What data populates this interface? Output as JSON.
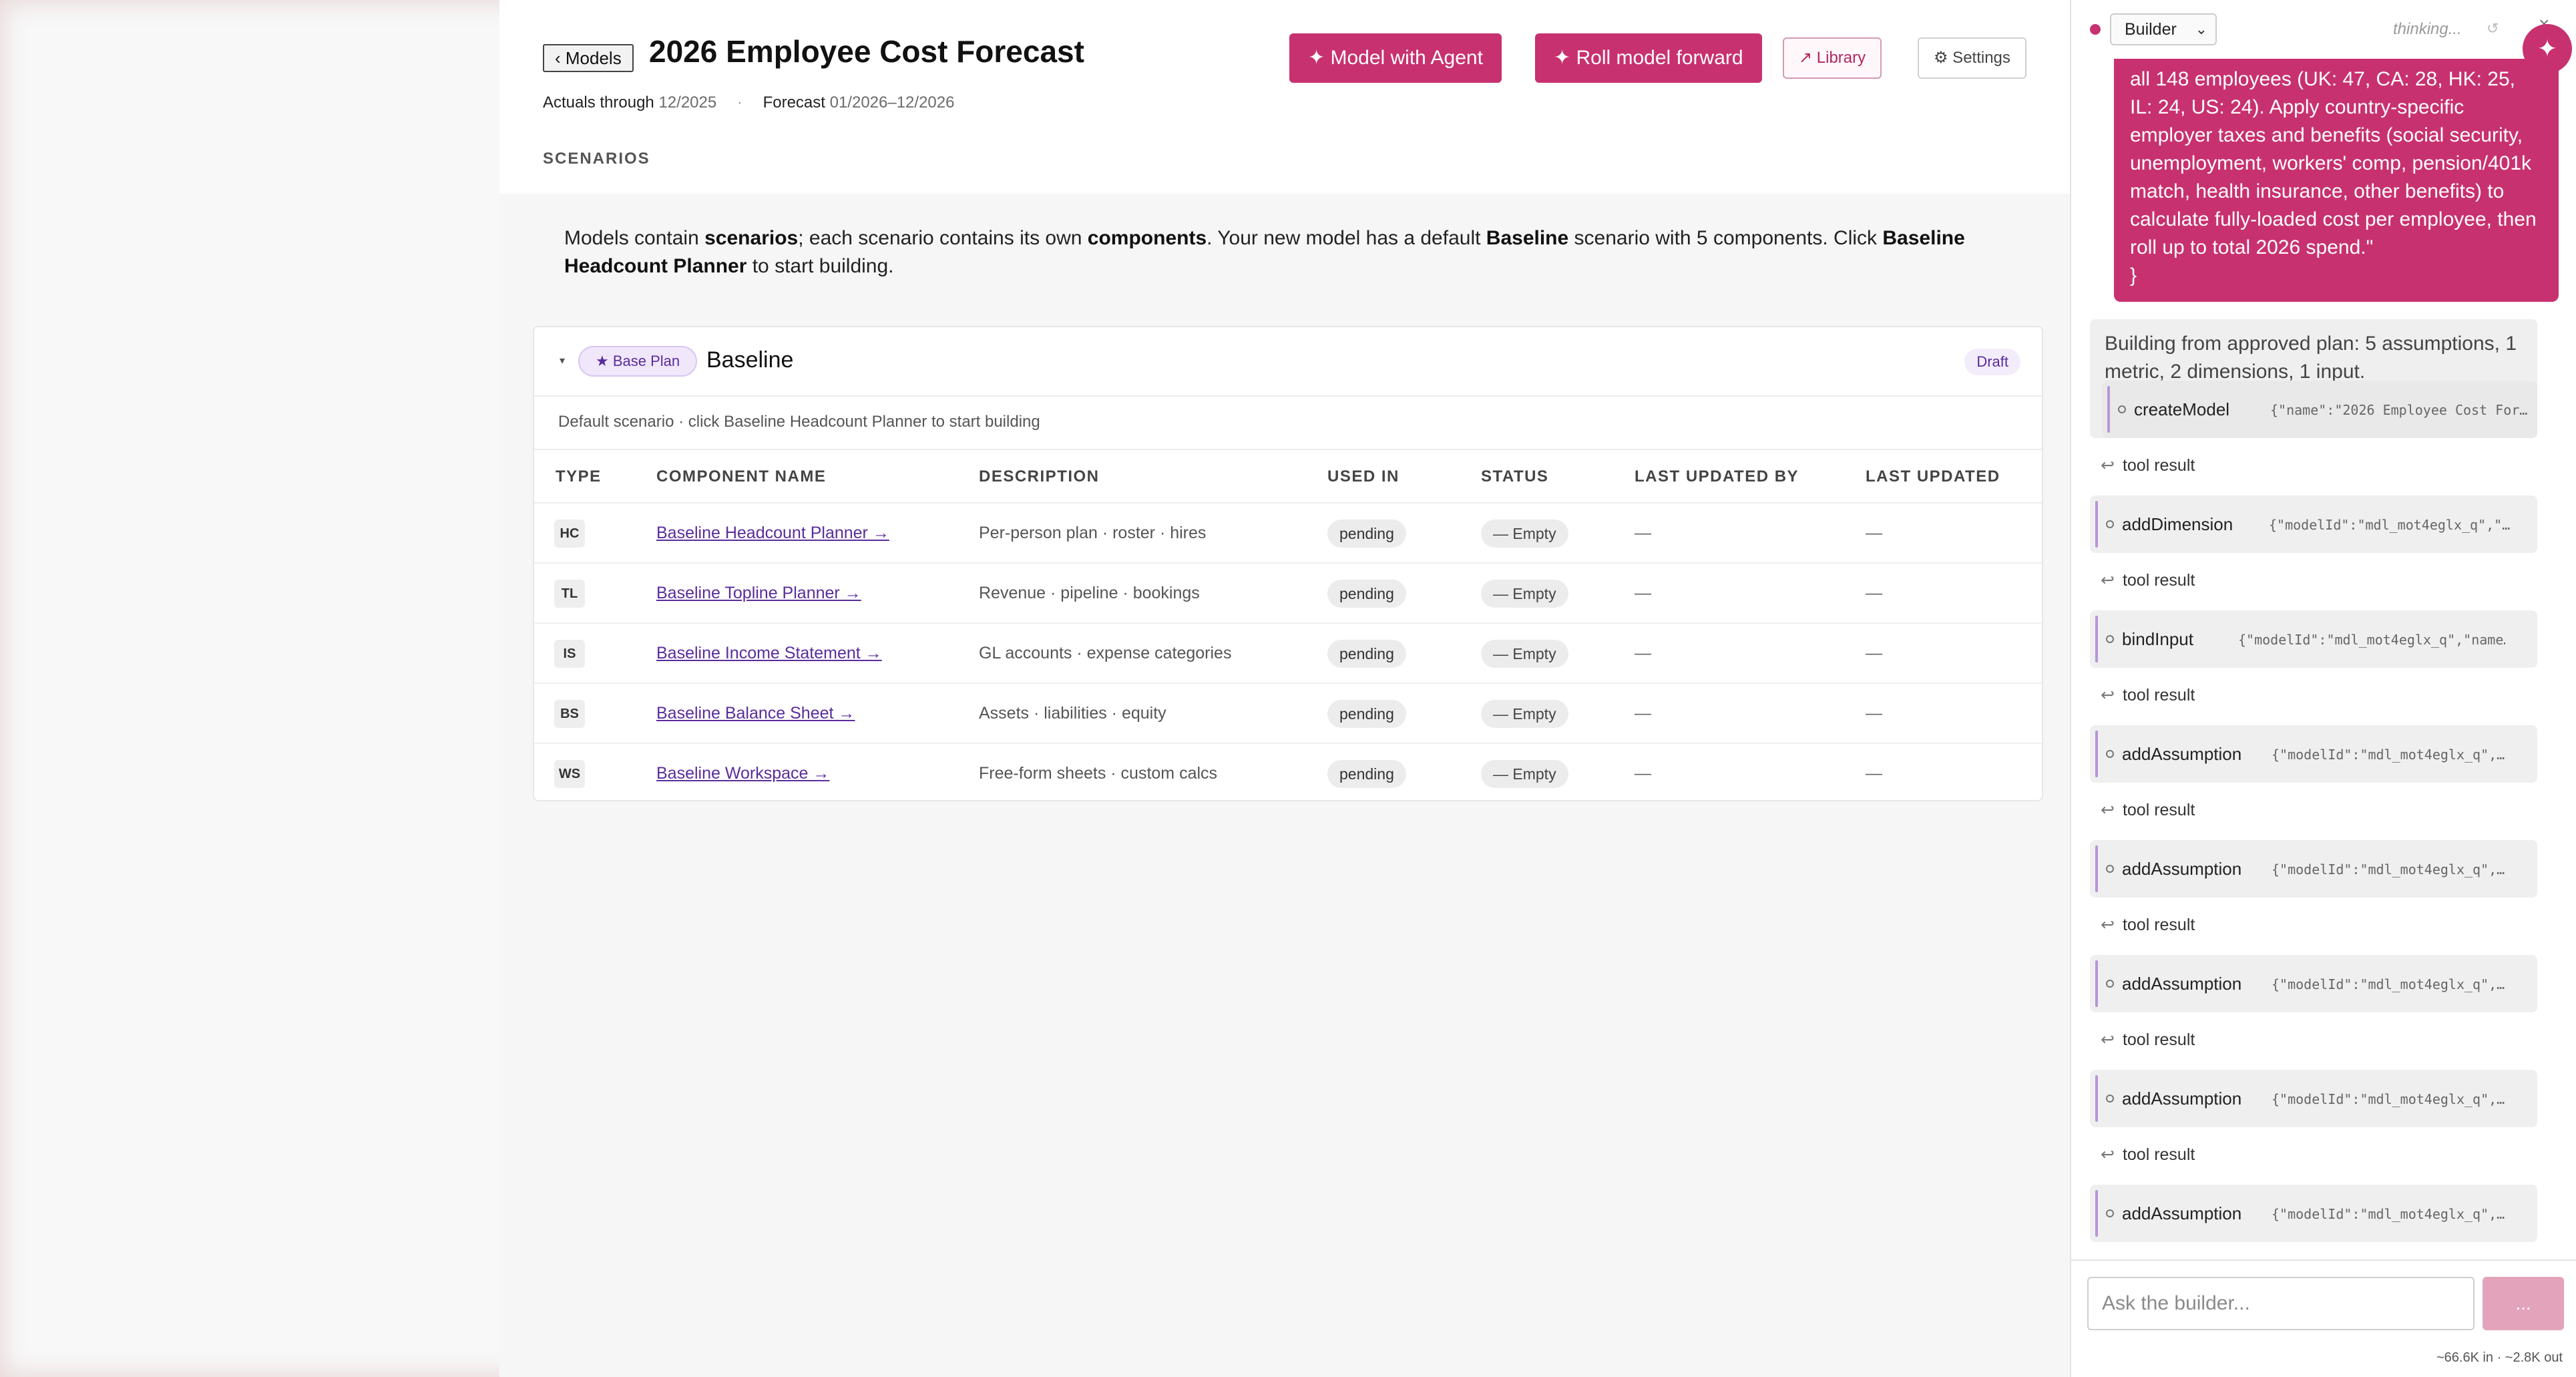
{
  "header": {
    "back_label": "‹ Models",
    "title": "2026 Employee Cost Forecast",
    "actuals_label": "Actuals through",
    "actuals_value": "12/2025",
    "meta_sep": "·",
    "forecast_label": "Forecast",
    "forecast_value": "01/2026–12/2026",
    "scenarios_label": "SCENARIOS",
    "buttons": {
      "agent": "✦ Model with Agent",
      "roll": "✦ Roll model forward",
      "library": "↗ Library",
      "settings": "⚙ Settings"
    }
  },
  "intro": {
    "p1": "Models contain ",
    "b1": "scenarios",
    "p2": "; each scenario contains its own ",
    "b2": "components",
    "p3": ". Your new model has a default ",
    "b3": "Baseline",
    "p4": " scenario with 5 components. Click ",
    "b4": "Baseline Headcount Planner",
    "p5": " to start building."
  },
  "scenario": {
    "caret": "▾",
    "badge": "★ Base Plan",
    "title": "Baseline",
    "status": "Draft",
    "subtitle": "Default scenario · click Baseline Headcount Planner to start building",
    "columns": [
      "TYPE",
      "COMPONENT NAME",
      "DESCRIPTION",
      "USED IN",
      "STATUS",
      "LAST UPDATED BY",
      "LAST UPDATED"
    ],
    "rows": [
      {
        "type": "HC",
        "name": "Baseline Headcount Planner →",
        "description": "Per-person plan · roster · hires",
        "used_in": "pending",
        "status": "— Empty",
        "updated_by": "—",
        "updated": "—"
      },
      {
        "type": "TL",
        "name": "Baseline Topline Planner →",
        "description": "Revenue · pipeline · bookings",
        "used_in": "pending",
        "status": "— Empty",
        "updated_by": "—",
        "updated": "—"
      },
      {
        "type": "IS",
        "name": "Baseline Income Statement →",
        "description": "GL accounts · expense categories",
        "used_in": "pending",
        "status": "— Empty",
        "updated_by": "—",
        "updated": "—"
      },
      {
        "type": "BS",
        "name": "Baseline Balance Sheet →",
        "description": "Assets · liabilities · equity",
        "used_in": "pending",
        "status": "— Empty",
        "updated_by": "—",
        "updated": "—"
      },
      {
        "type": "WS",
        "name": "Baseline Workspace →",
        "description": "Free-form sheets · custom calcs",
        "used_in": "pending",
        "status": "— Empty",
        "updated_by": "—",
        "updated": "—"
      }
    ]
  },
  "sidebar": {
    "mode": "Builder",
    "mode_chevron": "⌄",
    "thinking": "thinking...",
    "refresh_icon": "↺",
    "close_icon": "×",
    "spark_icon": "✦",
    "user_message": "all 148 employees (UK: 47, CA: 28, HK: 25, IL: 24, US: 24). Apply country-specific employer taxes and benefits (social security, unemployment, workers' comp, pension/401k match, health insurance, other benefits) to calculate fully-loaded cost per employee, then roll up to total 2026 spend.\"\n}",
    "assistant_message": "Building from approved plan: 5 assumptions, 1 metric, 2 dimensions, 1 input.",
    "tool_result_label": "tool result",
    "tools": [
      {
        "name": "createModel",
        "args": "{\"name\":\"2026 Employee Cost For…"
      },
      {
        "name": "addDimension",
        "args": "{\"modelId\":\"mdl_mot4eglx_q\",\"…"
      },
      {
        "name": "bindInput",
        "args": "{\"modelId\":\"mdl_mot4eglx_q\",\"name…"
      },
      {
        "name": "addAssumption",
        "args": "{\"modelId\":\"mdl_mot4eglx_q\",…"
      },
      {
        "name": "addAssumption",
        "args": "{\"modelId\":\"mdl_mot4eglx_q\",…"
      },
      {
        "name": "addAssumption",
        "args": "{\"modelId\":\"mdl_mot4eglx_q\",…"
      },
      {
        "name": "addAssumption",
        "args": "{\"modelId\":\"mdl_mot4eglx_q\",…"
      },
      {
        "name": "addAssumption",
        "args": "{\"modelId\":\"mdl_mot4eglx_q\",…"
      }
    ],
    "input_placeholder": "Ask the builder...",
    "send_label": "...",
    "tokens": "~66.6K in · ~2.8K out"
  }
}
